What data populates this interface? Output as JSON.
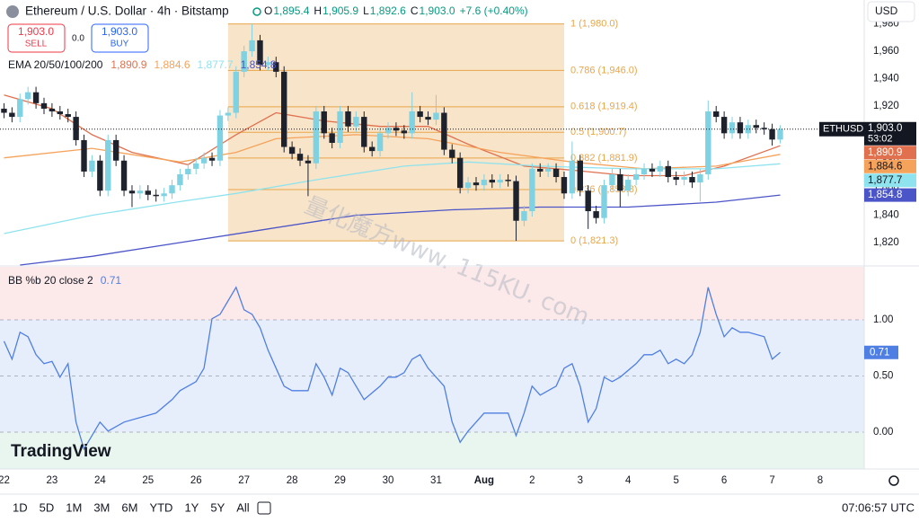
{
  "header": {
    "symbol": "Ethereum / U.S. Dollar · 4h · Bitstamp",
    "ohlc": [
      {
        "key": "O",
        "value": "1,895.4"
      },
      {
        "key": "H",
        "value": "1,905.9"
      },
      {
        "key": "L",
        "value": "1,892.6"
      },
      {
        "key": "C",
        "value": "1,903.0"
      }
    ],
    "change": "+7.6 (+0.40%)"
  },
  "trade": {
    "sell_price": "1,903.0",
    "sell": "SELL",
    "spread": "0.0",
    "buy_price": "1,903.0",
    "buy": "BUY"
  },
  "currency": "USD",
  "watermark": "量化魔方www. 115KU. com",
  "logo": "TradingView",
  "toolbar": {
    "ranges": [
      "1D",
      "5D",
      "1M",
      "3M",
      "6M",
      "YTD",
      "1Y",
      "5Y",
      "All"
    ],
    "time": "07:06:57 UTC"
  },
  "chart_data": [
    {
      "type": "candlestick",
      "legend": "EMA 20/50/100/200",
      "up_color": "#7fd2e2",
      "down_color": "#1e222d",
      "xlim": [
        -0.5,
        107.5
      ],
      "ylim": [
        1803.6,
        1997.5
      ],
      "grid": false,
      "xticks": [
        {
          "value": 0,
          "label": "22"
        },
        {
          "value": 6,
          "label": "23"
        },
        {
          "value": 12,
          "label": "24"
        },
        {
          "value": 18,
          "label": "25"
        },
        {
          "value": 24,
          "label": "26"
        },
        {
          "value": 30,
          "label": "27"
        },
        {
          "value": 36,
          "label": "28"
        },
        {
          "value": 42,
          "label": "29"
        },
        {
          "value": 48,
          "label": "30"
        },
        {
          "value": 54,
          "label": "31"
        },
        {
          "value": 60,
          "label": "Aug"
        },
        {
          "value": 66,
          "label": "2"
        },
        {
          "value": 72,
          "label": "3"
        },
        {
          "value": 78,
          "label": "4"
        },
        {
          "value": 84,
          "label": "5"
        },
        {
          "value": 90,
          "label": "6"
        },
        {
          "value": 96,
          "label": "7"
        },
        {
          "value": 102,
          "label": "8"
        }
      ],
      "yticks": [
        {
          "value": 1820,
          "label": "1,820"
        },
        {
          "value": 1840,
          "label": "1,840"
        },
        {
          "value": 1860,
          "label": "1,860"
        },
        {
          "value": 1880,
          "label": "1,880"
        },
        {
          "value": 1900,
          "label": "1,900"
        },
        {
          "value": 1920,
          "label": "1,920"
        },
        {
          "value": 1940,
          "label": "1,940"
        },
        {
          "value": 1960,
          "label": "1,960"
        },
        {
          "value": 1980,
          "label": "1,980"
        }
      ],
      "open": [
        1918,
        1915,
        1912,
        1925,
        1930,
        1922,
        1918,
        1916,
        1914,
        1912,
        1895,
        1872,
        1880,
        1858,
        1895,
        1880,
        1858,
        1856,
        1858,
        1855,
        1854,
        1856,
        1862,
        1870,
        1874,
        1878,
        1882,
        1880,
        1913,
        1915,
        1945,
        1960,
        1968,
        1950,
        1952,
        1945,
        1890,
        1885,
        1880,
        1878,
        1916,
        1900,
        1893,
        1916,
        1905,
        1912,
        1890,
        1887,
        1900,
        1904,
        1902,
        1900,
        1916,
        1912,
        1910,
        1915,
        1888,
        1882,
        1860,
        1864,
        1862,
        1866,
        1864,
        1866,
        1865,
        1836,
        1843,
        1874,
        1872,
        1874,
        1868,
        1856,
        1880,
        1858,
        1843,
        1838,
        1862,
        1870,
        1858,
        1866,
        1870,
        1874,
        1872,
        1876,
        1868,
        1866,
        1868,
        1864,
        1870,
        1916,
        1912,
        1900,
        1908,
        1900,
        1906,
        1904,
        1903,
        1895.4
      ],
      "high": [
        1922,
        1919,
        1929,
        1934,
        1934,
        1926,
        1922,
        1920,
        1918,
        1916,
        1899,
        1884,
        1884,
        1899,
        1899,
        1884,
        1862,
        1862,
        1862,
        1859,
        1860,
        1866,
        1874,
        1878,
        1882,
        1886,
        1886,
        1917,
        1919,
        1949,
        1964,
        1980,
        1972,
        1956,
        1956,
        1949,
        1894,
        1889,
        1884,
        1920,
        1920,
        1904,
        1920,
        1920,
        1916,
        1916,
        1894,
        1904,
        1908,
        1908,
        1906,
        1930,
        1920,
        1916,
        1928,
        1919,
        1892,
        1886,
        1868,
        1868,
        1870,
        1870,
        1870,
        1870,
        1869,
        1847,
        1878,
        1878,
        1878,
        1878,
        1872,
        1894,
        1884,
        1862,
        1847,
        1866,
        1874,
        1874,
        1870,
        1874,
        1878,
        1878,
        1880,
        1880,
        1872,
        1872,
        1872,
        1874,
        1924,
        1920,
        1916,
        1912,
        1912,
        1910,
        1910,
        1908,
        1907,
        1905.9
      ],
      "low": [
        1911,
        1908,
        1908,
        1921,
        1918,
        1914,
        1912,
        1910,
        1908,
        1891,
        1868,
        1868,
        1854,
        1854,
        1876,
        1854,
        1846,
        1852,
        1851,
        1850,
        1850,
        1852,
        1858,
        1866,
        1870,
        1874,
        1876,
        1876,
        1909,
        1911,
        1941,
        1956,
        1946,
        1946,
        1941,
        1886,
        1881,
        1876,
        1854,
        1874,
        1896,
        1889,
        1889,
        1901,
        1901,
        1886,
        1883,
        1883,
        1896,
        1898,
        1896,
        1896,
        1908,
        1906,
        1906,
        1884,
        1878,
        1856,
        1856,
        1858,
        1858,
        1860,
        1860,
        1861,
        1821.3,
        1832,
        1839,
        1868,
        1868,
        1864,
        1852,
        1852,
        1854,
        1830,
        1834,
        1834,
        1858,
        1846,
        1854,
        1862,
        1866,
        1868,
        1868,
        1864,
        1862,
        1862,
        1860,
        1850,
        1866,
        1908,
        1896,
        1896,
        1896,
        1896,
        1900,
        1899,
        1891,
        1892.6
      ],
      "close": [
        1915,
        1912,
        1925,
        1930,
        1922,
        1918,
        1916,
        1914,
        1912,
        1895,
        1872,
        1880,
        1858,
        1895,
        1880,
        1858,
        1856,
        1858,
        1855,
        1854,
        1856,
        1862,
        1870,
        1874,
        1878,
        1882,
        1880,
        1913,
        1915,
        1945,
        1960,
        1968,
        1950,
        1952,
        1945,
        1890,
        1885,
        1880,
        1878,
        1916,
        1900,
        1893,
        1916,
        1905,
        1912,
        1890,
        1887,
        1900,
        1904,
        1902,
        1900,
        1916,
        1912,
        1910,
        1915,
        1888,
        1882,
        1860,
        1864,
        1862,
        1866,
        1864,
        1866,
        1865,
        1836,
        1843,
        1874,
        1872,
        1874,
        1868,
        1856,
        1880,
        1858,
        1843,
        1838,
        1862,
        1870,
        1858,
        1866,
        1870,
        1874,
        1872,
        1876,
        1868,
        1866,
        1868,
        1864,
        1870,
        1916,
        1912,
        1900,
        1908,
        1900,
        1906,
        1904,
        1903,
        1895.4,
        1903.0
      ],
      "series": [
        {
          "color": "#e0704e",
          "label": "1,890.9",
          "x": [
            0,
            6,
            11,
            16,
            23,
            29,
            34,
            40,
            47,
            53,
            58,
            65,
            71,
            78,
            85,
            90,
            97
          ],
          "values": [
            1928,
            1918,
            1899,
            1886,
            1877,
            1899,
            1915,
            1909,
            1905,
            1905,
            1892,
            1876,
            1873,
            1869,
            1869,
            1876,
            1890.9
          ]
        },
        {
          "color": "#f5a25a",
          "label": "1,884.6",
          "x": [
            0,
            11,
            22,
            29,
            34,
            44,
            53,
            62,
            71,
            80,
            89,
            97
          ],
          "values": [
            1882,
            1889,
            1879,
            1886,
            1896,
            1899,
            1896,
            1886,
            1879,
            1874,
            1876,
            1884.6
          ]
        },
        {
          "color": "#8fe3ee",
          "label": "1,877.7",
          "x": [
            0,
            11,
            22,
            29,
            39,
            50,
            58,
            67,
            78,
            89,
            97
          ],
          "values": [
            1826.6,
            1840,
            1850,
            1856,
            1866,
            1876,
            1879,
            1876,
            1874,
            1874,
            1877.7
          ]
        },
        {
          "color": "#4b55c8",
          "label": "1,854.8",
          "x": [
            2,
            11,
            22,
            33,
            44,
            56,
            67,
            78,
            89,
            97
          ],
          "values": [
            1803.6,
            1810,
            1820,
            1830,
            1840,
            1844,
            1846,
            1846,
            1849.6,
            1854.8
          ]
        }
      ],
      "last_price": {
        "symbol": "ETHUSD",
        "value": 1903.0,
        "label": "1,903.0",
        "countdown": "53:02"
      },
      "fib_x": [
        28,
        70
      ],
      "fib_color": "#e8a64a",
      "fib_levels": [
        {
          "value": 1980.0,
          "label": "1 (1,980.0)"
        },
        {
          "value": 1946.0,
          "label": "0.786 (1,946.0)"
        },
        {
          "value": 1919.4,
          "label": "0.618 (1,919.4)"
        },
        {
          "value": 1900.7,
          "label": "0.5 (1,900.7)"
        },
        {
          "value": 1881.9,
          "label": "0.382 (1,881.9)"
        },
        {
          "value": 1858.8,
          "label": "0.236 (1,858.8)"
        },
        {
          "value": 1821.3,
          "label": "0 (1,821.3)"
        }
      ]
    },
    {
      "type": "line",
      "legend": "BB %b 20 close 2",
      "legend_value": "0.71",
      "color": "#4f7fe3",
      "band_colors": [
        "#fce9ea",
        "#e6eefb",
        "#e9f5ef"
      ],
      "xlim": [
        -0.5,
        107.5
      ],
      "ylim": [
        -0.328,
        1.472
      ],
      "yticks": [
        {
          "value": 0,
          "label": "0.00"
        },
        {
          "value": 0.5,
          "label": "0.50"
        },
        {
          "value": 1,
          "label": "1.00"
        }
      ],
      "x": [
        0,
        1,
        2,
        3,
        4,
        5,
        6,
        7,
        8,
        9,
        10,
        11,
        12,
        13,
        14,
        15,
        17,
        19,
        21,
        22,
        24,
        25,
        26,
        27,
        29,
        30,
        31,
        32,
        33,
        34,
        35,
        36,
        38,
        39,
        40,
        41,
        42,
        43,
        44,
        45,
        47,
        48,
        49,
        50,
        51,
        52,
        53,
        55,
        56,
        57,
        58,
        59,
        60,
        62,
        63,
        64,
        65,
        66,
        67,
        69,
        70,
        71,
        72,
        73,
        74,
        75,
        76,
        77,
        79,
        80,
        81,
        82,
        83,
        84,
        85,
        86,
        87,
        88,
        89,
        90,
        91,
        92,
        93,
        95,
        96,
        97
      ],
      "values": [
        0.81,
        0.65,
        0.89,
        0.85,
        0.69,
        0.61,
        0.63,
        0.49,
        0.61,
        0.09,
        -0.15,
        -0.03,
        0.09,
        0.01,
        0.05,
        0.09,
        0.13,
        0.17,
        0.29,
        0.37,
        0.45,
        0.57,
        1.01,
        1.05,
        1.29,
        1.09,
        1.05,
        0.93,
        0.73,
        0.57,
        0.41,
        0.37,
        0.37,
        0.61,
        0.49,
        0.33,
        0.57,
        0.53,
        0.41,
        0.29,
        0.41,
        0.49,
        0.49,
        0.53,
        0.65,
        0.69,
        0.57,
        0.41,
        0.09,
        -0.09,
        0.01,
        0.09,
        0.17,
        0.17,
        0.17,
        -0.03,
        0.17,
        0.41,
        0.33,
        0.41,
        0.57,
        0.61,
        0.41,
        0.09,
        0.21,
        0.49,
        0.45,
        0.49,
        0.61,
        0.69,
        0.69,
        0.73,
        0.61,
        0.65,
        0.61,
        0.69,
        0.89,
        1.29,
        1.05,
        0.85,
        0.93,
        0.89,
        0.89,
        0.85,
        0.65,
        0.71
      ]
    }
  ]
}
